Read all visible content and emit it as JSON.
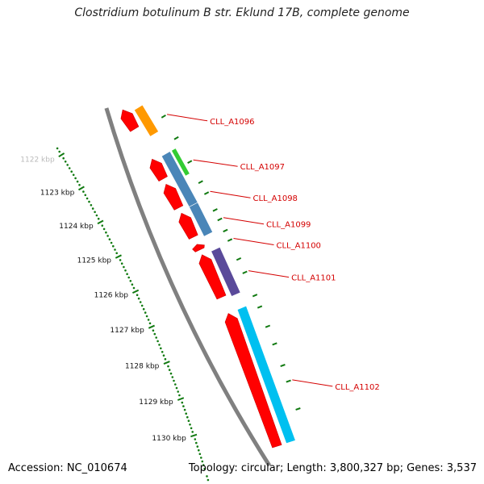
{
  "title": "Clostridium botulinum B str. Eklund 17B, complete genome",
  "accession_text": "Accession: NC_010674",
  "summary_text": "Topology: circular; Length: 3,800,327 bp; Genes: 3,537",
  "ruler": {
    "ticks": [
      {
        "kbp": 1122,
        "label": "1122 kbp",
        "faded": true
      },
      {
        "kbp": 1123,
        "label": "1123 kbp"
      },
      {
        "kbp": 1124,
        "label": "1124 kbp"
      },
      {
        "kbp": 1125,
        "label": "1125 kbp"
      },
      {
        "kbp": 1126,
        "label": "1126 kbp"
      },
      {
        "kbp": 1127,
        "label": "1127 kbp"
      },
      {
        "kbp": 1128,
        "label": "1128 kbp"
      },
      {
        "kbp": 1129,
        "label": "1129 kbp"
      },
      {
        "kbp": 1130,
        "label": "1130 kbp"
      }
    ]
  },
  "colors": {
    "backbone": "#808080",
    "gene_red": "#ff0000",
    "ruler_green": "#117a11",
    "label_red": "#d40000",
    "orange": "#ff9900",
    "green": "#33cc33",
    "steelblue": "#4a86b8",
    "purple": "#5a4a9a",
    "cyan": "#00c0f0"
  },
  "genes": [
    {
      "id": "red-1122",
      "track": "red",
      "start": 1121.85,
      "end": 1122.4,
      "dir": "-",
      "color": "#ff0000"
    },
    {
      "id": "red-1123",
      "track": "red",
      "start": 1123.25,
      "end": 1123.8,
      "dir": "-",
      "color": "#ff0000"
    },
    {
      "id": "red-1124",
      "track": "red",
      "start": 1123.95,
      "end": 1124.6,
      "dir": "-",
      "color": "#ff0000"
    },
    {
      "id": "red-1125",
      "track": "red",
      "start": 1124.75,
      "end": 1125.4,
      "dir": "-",
      "color": "#ff0000"
    },
    {
      "id": "red-1126a",
      "track": "red",
      "start": 1125.6,
      "end": 1125.75,
      "dir": "-",
      "color": "#ff0000"
    },
    {
      "id": "red-1126b",
      "track": "red",
      "start": 1125.88,
      "end": 1127.02,
      "dir": "-",
      "color": "#ff0000"
    },
    {
      "id": "red-1128",
      "track": "red",
      "start": 1127.45,
      "end": 1130.9,
      "dir": "-",
      "color": "#ff0000"
    }
  ],
  "features": [
    {
      "id": "CLL_A1096",
      "label": "CLL_A1096",
      "track": "out1",
      "start": 1122.0,
      "end": 1122.75,
      "color": "#ff9900",
      "label_kbp": 1122.5,
      "label_dx": 50
    },
    {
      "id": "CLL_A1097",
      "label": "CLL_A1097",
      "track": "out2",
      "start": 1123.3,
      "end": 1124.0,
      "color": "#33cc33",
      "label_kbp": 1123.75,
      "label_dx": 55
    },
    {
      "id": "CLL_A1098",
      "label": "CLL_A1098",
      "track": "out1",
      "start": 1123.3,
      "end": 1124.7,
      "color": "#4a86b8",
      "label_kbp": 1124.6,
      "label_dx": 50
    },
    {
      "id": "CLL_A1099",
      "label": "CLL_A1099",
      "track": "out1",
      "start": 1124.7,
      "end": 1125.5,
      "color": "#4a86b8",
      "label_kbp": 1125.3,
      "label_dx": 50
    },
    {
      "id": "CLL_A1100",
      "label": "CLL_A1100",
      "track": "none",
      "start": 1125.85,
      "end": 1125.85,
      "color": "#d40000",
      "label_kbp": 1125.85,
      "label_dx": 50
    },
    {
      "id": "CLL_A1101",
      "label": "CLL_A1101",
      "track": "out1",
      "start": 1125.9,
      "end": 1127.1,
      "color": "#5a4a9a",
      "label_kbp": 1126.7,
      "label_dx": 50
    },
    {
      "id": "CLL_A1102",
      "label": "CLL_A1102",
      "track": "out1",
      "start": 1127.45,
      "end": 1130.9,
      "color": "#00c0f0",
      "label_kbp": 1129.5,
      "label_dx": 50
    }
  ]
}
